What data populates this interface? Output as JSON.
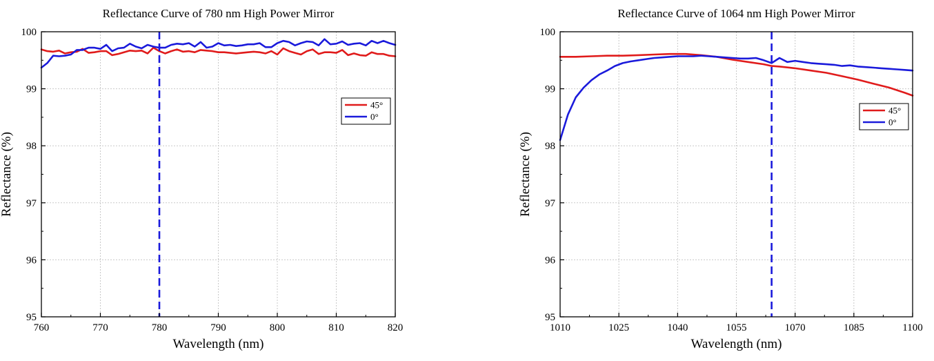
{
  "chart_data": [
    {
      "type": "line",
      "title": "Reflectance Curve of 780 nm High Power Mirror",
      "xlabel": "Wavelength (nm)",
      "ylabel": "Reflectance (%)",
      "xlim": [
        760,
        820
      ],
      "ylim": [
        95,
        100
      ],
      "xticks": [
        760,
        770,
        780,
        790,
        800,
        810,
        820
      ],
      "yticks": [
        95,
        96,
        97,
        98,
        99,
        100
      ],
      "grid": true,
      "legend_position": "center-right",
      "marker_line": {
        "x": 780,
        "color": "#1a1adb",
        "style": "dashed"
      },
      "series": [
        {
          "name": "45°",
          "color": "#e01b1b",
          "x": [
            760,
            761,
            762,
            763,
            764,
            765,
            766,
            767,
            768,
            769,
            770,
            771,
            772,
            773,
            774,
            775,
            776,
            777,
            778,
            779,
            780,
            781,
            782,
            783,
            784,
            785,
            786,
            787,
            788,
            789,
            790,
            791,
            792,
            793,
            794,
            795,
            796,
            797,
            798,
            799,
            800,
            801,
            802,
            803,
            804,
            805,
            806,
            807,
            808,
            809,
            810,
            811,
            812,
            813,
            814,
            815,
            816,
            817,
            818,
            819,
            820
          ],
          "y": [
            99.69,
            99.66,
            99.65,
            99.67,
            99.62,
            99.64,
            99.65,
            99.7,
            99.63,
            99.64,
            99.66,
            99.66,
            99.59,
            99.61,
            99.64,
            99.67,
            99.66,
            99.67,
            99.62,
            99.72,
            99.66,
            99.62,
            99.66,
            99.69,
            99.65,
            99.66,
            99.64,
            99.68,
            99.67,
            99.66,
            99.64,
            99.64,
            99.63,
            99.62,
            99.63,
            99.64,
            99.65,
            99.64,
            99.62,
            99.66,
            99.6,
            99.71,
            99.66,
            99.63,
            99.6,
            99.66,
            99.69,
            99.61,
            99.64,
            99.64,
            99.63,
            99.68,
            99.59,
            99.62,
            99.59,
            99.58,
            99.64,
            99.61,
            99.61,
            99.58,
            99.57
          ]
        },
        {
          "name": "0°",
          "color": "#1a1adb",
          "x": [
            760,
            761,
            762,
            763,
            764,
            765,
            766,
            767,
            768,
            769,
            770,
            771,
            772,
            773,
            774,
            775,
            776,
            777,
            778,
            779,
            780,
            781,
            782,
            783,
            784,
            785,
            786,
            787,
            788,
            789,
            790,
            791,
            792,
            793,
            794,
            795,
            796,
            797,
            798,
            799,
            800,
            801,
            802,
            803,
            804,
            805,
            806,
            807,
            808,
            809,
            810,
            811,
            812,
            813,
            814,
            815,
            816,
            817,
            818,
            819,
            820
          ],
          "y": [
            99.37,
            99.45,
            99.58,
            99.57,
            99.58,
            99.6,
            99.68,
            99.68,
            99.72,
            99.72,
            99.7,
            99.77,
            99.66,
            99.71,
            99.72,
            99.79,
            99.74,
            99.71,
            99.77,
            99.74,
            99.72,
            99.72,
            99.77,
            99.79,
            99.78,
            99.8,
            99.74,
            99.82,
            99.72,
            99.74,
            99.8,
            99.76,
            99.77,
            99.75,
            99.76,
            99.78,
            99.78,
            99.8,
            99.73,
            99.73,
            99.8,
            99.84,
            99.82,
            99.76,
            99.8,
            99.83,
            99.82,
            99.76,
            99.87,
            99.78,
            99.79,
            99.83,
            99.77,
            99.79,
            99.8,
            99.76,
            99.84,
            99.8,
            99.84,
            99.8,
            99.77
          ]
        }
      ]
    },
    {
      "type": "line",
      "title": "Reflectance Curve of 1064 nm High Power Mirror",
      "xlabel": "Wavelength (nm)",
      "ylabel": "Reflectance (%)",
      "xlim": [
        1010,
        1100
      ],
      "ylim": [
        95,
        100
      ],
      "xticks": [
        1010,
        1025,
        1040,
        1055,
        1070,
        1085,
        1100
      ],
      "yticks": [
        95,
        96,
        97,
        98,
        99,
        100
      ],
      "grid": true,
      "legend_position": "center-right",
      "marker_line": {
        "x": 1064,
        "color": "#1a1adb",
        "style": "dashed"
      },
      "series": [
        {
          "name": "45°",
          "color": "#e01b1b",
          "x": [
            1010,
            1014,
            1018,
            1022,
            1026,
            1030,
            1034,
            1038,
            1042,
            1046,
            1050,
            1054,
            1058,
            1062,
            1064,
            1066,
            1070,
            1074,
            1078,
            1082,
            1086,
            1090,
            1094,
            1098,
            1100
          ],
          "y": [
            99.56,
            99.56,
            99.57,
            99.58,
            99.58,
            99.59,
            99.6,
            99.61,
            99.61,
            99.59,
            99.56,
            99.51,
            99.47,
            99.43,
            99.4,
            99.39,
            99.36,
            99.32,
            99.28,
            99.22,
            99.16,
            99.09,
            99.02,
            98.93,
            98.88
          ]
        },
        {
          "name": "0°",
          "color": "#1a1adb",
          "x": [
            1010,
            1012,
            1014,
            1016,
            1018,
            1020,
            1022,
            1024,
            1026,
            1028,
            1030,
            1032,
            1034,
            1036,
            1038,
            1040,
            1042,
            1044,
            1046,
            1048,
            1050,
            1052,
            1054,
            1056,
            1058,
            1060,
            1062,
            1064,
            1066,
            1068,
            1070,
            1072,
            1074,
            1076,
            1078,
            1080,
            1082,
            1084,
            1086,
            1088,
            1090,
            1092,
            1094,
            1096,
            1098,
            1100
          ],
          "y": [
            98.1,
            98.55,
            98.85,
            99.02,
            99.15,
            99.25,
            99.32,
            99.4,
            99.45,
            99.48,
            99.5,
            99.52,
            99.54,
            99.55,
            99.56,
            99.57,
            99.57,
            99.57,
            99.58,
            99.57,
            99.56,
            99.55,
            99.54,
            99.53,
            99.53,
            99.54,
            99.5,
            99.45,
            99.54,
            99.47,
            99.49,
            99.47,
            99.45,
            99.44,
            99.43,
            99.42,
            99.4,
            99.41,
            99.39,
            99.38,
            99.37,
            99.36,
            99.35,
            99.34,
            99.33,
            99.32
          ]
        }
      ]
    }
  ]
}
